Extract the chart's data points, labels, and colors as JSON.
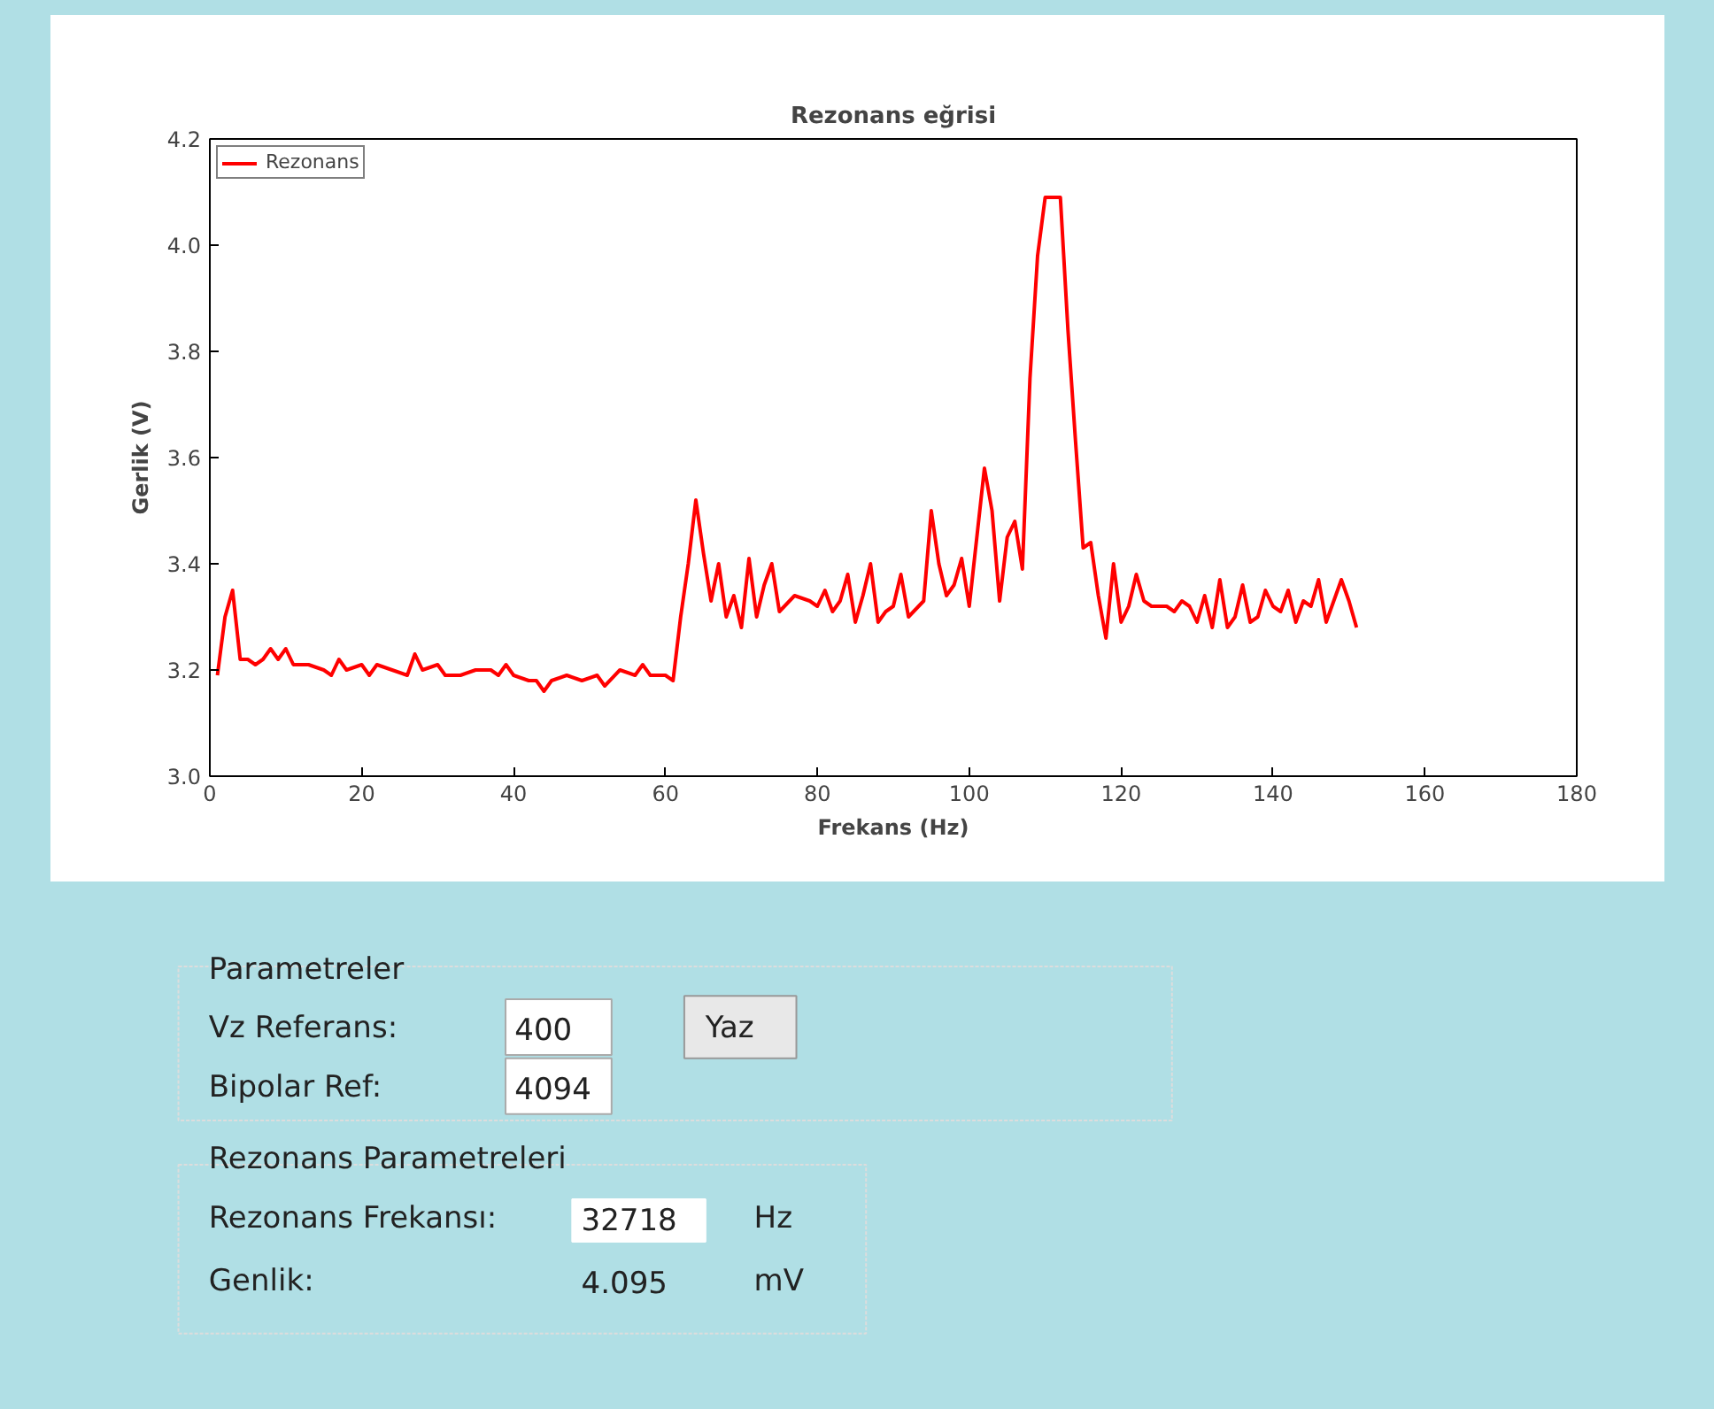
{
  "chart_data": [
    {
      "type": "line",
      "title": "Rezonans eğrisi",
      "xlabel": "Frekans (Hz)",
      "ylabel": "Gerlik (V)",
      "xlim": [
        0,
        180
      ],
      "xticks": [
        0,
        20,
        40,
        60,
        80,
        100,
        120,
        140,
        160,
        180
      ],
      "ylim": [
        3.0,
        4.2
      ],
      "yticks": [
        {
          "value": 3.0,
          "label": "3.0"
        },
        {
          "value": 3.2,
          "label": "3.2"
        },
        {
          "value": 3.4,
          "label": "3.4"
        },
        {
          "value": 3.6,
          "label": "3.6"
        },
        {
          "value": 3.8,
          "label": "3.8"
        },
        {
          "value": 4.0,
          "label": "4.0"
        },
        {
          "value": 4.2,
          "label": "4.2"
        }
      ],
      "grid": false,
      "legend": "top left",
      "marker": "none",
      "line_style": "solid",
      "series": [
        {
          "name": "Rezonans",
          "color": "#ff0000",
          "x": [
            1,
            2,
            3,
            4,
            5,
            6,
            7,
            8,
            9,
            10,
            11,
            13,
            15,
            16,
            17,
            18,
            20,
            21,
            22,
            24,
            26,
            27,
            28,
            30,
            31,
            33,
            35,
            37,
            38,
            39,
            40,
            42,
            43,
            44,
            45,
            47,
            49,
            51,
            52,
            54,
            56,
            57,
            58,
            60,
            61,
            62,
            63,
            64,
            65,
            66,
            67,
            68,
            69,
            70,
            71,
            72,
            73,
            74,
            75,
            77,
            79,
            80,
            81,
            82,
            83,
            84,
            85,
            86,
            87,
            88,
            89,
            90,
            91,
            92,
            94,
            95,
            96,
            97,
            98,
            99,
            100,
            101,
            102,
            103,
            104,
            105,
            106,
            107,
            108,
            109,
            110,
            112,
            113,
            114,
            115,
            116,
            117,
            118,
            119,
            120,
            121,
            122,
            123,
            124,
            126,
            127,
            128,
            129,
            130,
            131,
            132,
            133,
            134,
            135,
            136,
            137,
            138,
            139,
            140,
            141,
            142,
            143,
            144,
            145,
            146,
            147,
            148,
            149,
            150,
            151
          ],
          "values": [
            3.19,
            3.3,
            3.35,
            3.22,
            3.22,
            3.21,
            3.22,
            3.24,
            3.22,
            3.24,
            3.21,
            3.21,
            3.2,
            3.19,
            3.22,
            3.2,
            3.21,
            3.19,
            3.21,
            3.2,
            3.19,
            3.23,
            3.2,
            3.21,
            3.19,
            3.19,
            3.2,
            3.2,
            3.19,
            3.21,
            3.19,
            3.18,
            3.18,
            3.16,
            3.18,
            3.19,
            3.18,
            3.19,
            3.17,
            3.2,
            3.19,
            3.21,
            3.19,
            3.19,
            3.18,
            3.3,
            3.4,
            3.52,
            3.42,
            3.33,
            3.4,
            3.3,
            3.34,
            3.28,
            3.41,
            3.3,
            3.36,
            3.4,
            3.31,
            3.34,
            3.33,
            3.32,
            3.35,
            3.31,
            3.33,
            3.38,
            3.29,
            3.34,
            3.4,
            3.29,
            3.31,
            3.32,
            3.38,
            3.3,
            3.33,
            3.5,
            3.4,
            3.34,
            3.36,
            3.41,
            3.32,
            3.45,
            3.58,
            3.5,
            3.33,
            3.45,
            3.48,
            3.39,
            3.75,
            3.98,
            4.09,
            4.09,
            3.84,
            3.63,
            3.43,
            3.44,
            3.34,
            3.26,
            3.4,
            3.29,
            3.32,
            3.38,
            3.33,
            3.32,
            3.32,
            3.31,
            3.33,
            3.32,
            3.29,
            3.34,
            3.28,
            3.37,
            3.28,
            3.3,
            3.36,
            3.29,
            3.3,
            3.35,
            3.32,
            3.31,
            3.35,
            3.29,
            3.33,
            3.32,
            3.37,
            3.29,
            3.33,
            3.37,
            3.33,
            3.28
          ]
        }
      ]
    },
    {
      "type": "other",
      "annotations": [
        "Parametreler",
        "Vz Referans:",
        "400",
        "Yaz",
        "Bipolar Ref:",
        "4094",
        "Rezonans Parametreleri",
        "Rezonans Frekansı:",
        "32718",
        "Hz",
        "Genlik:",
        "4.095",
        "mV"
      ]
    }
  ]
}
